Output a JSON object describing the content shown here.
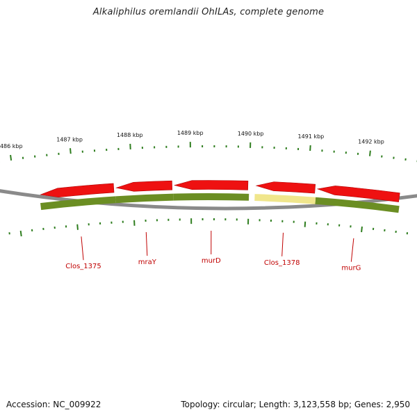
{
  "title": "Alkaliphilus oremlandii OhILAs, complete genome",
  "footer": {
    "accession": "Accession: NC_009922",
    "summary": "Topology: circular; Length: 3,123,558 bp; Genes: 2,950"
  },
  "ticks": [
    {
      "label": "1486 kbp",
      "kbp": 1486
    },
    {
      "label": "1487 kbp",
      "kbp": 1487
    },
    {
      "label": "1488 kbp",
      "kbp": 1488
    },
    {
      "label": "1489 kbp",
      "kbp": 1489
    },
    {
      "label": "1490 kbp",
      "kbp": 1490
    },
    {
      "label": "1491 kbp",
      "kbp": 1491
    },
    {
      "label": "1492 kbp",
      "kbp": 1492
    }
  ],
  "genes": [
    {
      "label": "murG",
      "start_kbp": 1491.15,
      "end_kbp": 1492.6,
      "strand": "forward"
    },
    {
      "label": "Clos_1378",
      "start_kbp": 1490.1,
      "end_kbp": 1491.15,
      "strand": "forward"
    },
    {
      "label": "murD",
      "start_kbp": 1488.7,
      "end_kbp": 1490.0,
      "strand": "forward"
    },
    {
      "label": "mraY",
      "start_kbp": 1487.7,
      "end_kbp": 1488.7,
      "strand": "forward"
    },
    {
      "label": "Clos_1375",
      "start_kbp": 1486.4,
      "end_kbp": 1487.7,
      "strand": "forward"
    }
  ],
  "colors": {
    "backbone": "#8a8a8a",
    "forward_gene": "#ee1111",
    "cds_feature": "#6b8e23",
    "highlight_feature": "#f0e68c",
    "tick": "#2e7d1e",
    "gene_label": "#c00000"
  }
}
